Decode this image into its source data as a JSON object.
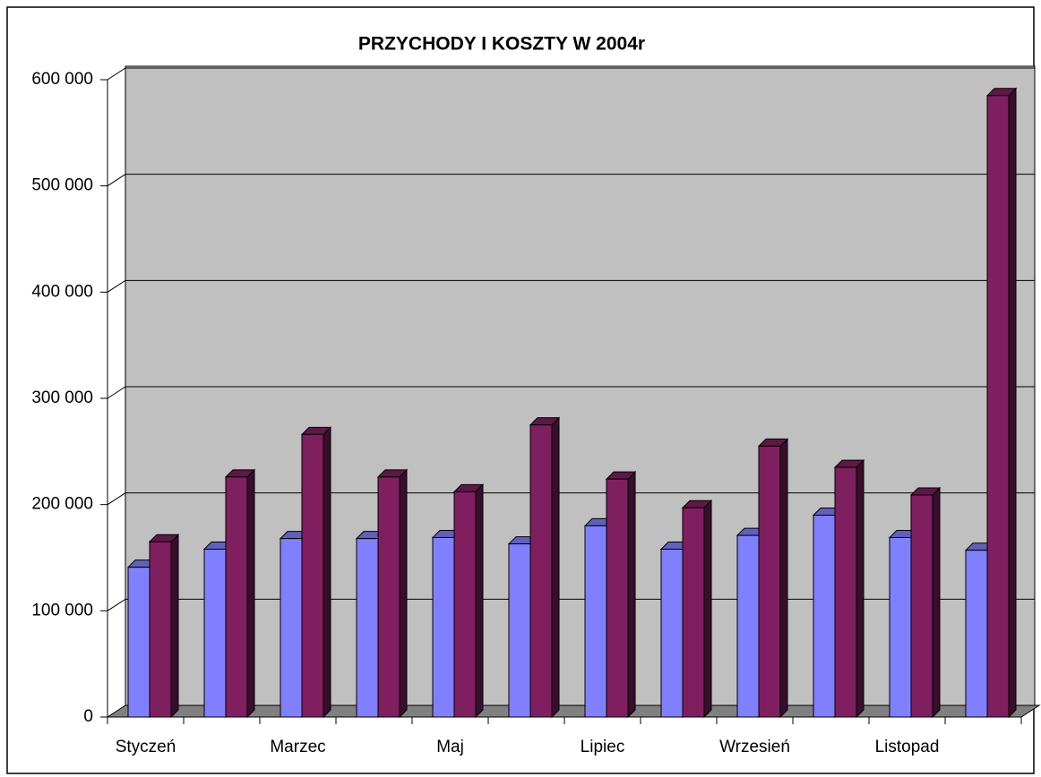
{
  "chart_data": {
    "type": "bar3d",
    "title": "PRZYCHODY I KOSZTY W 2004r",
    "categories": [
      "Styczeń",
      null,
      "Marzec",
      null,
      "Maj",
      null,
      "Lipiec",
      null,
      "Wrzesień",
      null,
      "Listopad",
      null
    ],
    "series": [
      {
        "color": "#8080ff",
        "values": [
          141000,
          158000,
          168000,
          168000,
          169000,
          163000,
          180000,
          158000,
          171000,
          190000,
          169000,
          157000
        ]
      },
      {
        "color": "#7f1f5f",
        "values": [
          165000,
          226000,
          266000,
          226000,
          212000,
          275000,
          224000,
          197000,
          255000,
          235000,
          209000,
          585000
        ]
      }
    ],
    "ylim": [
      0,
      600000
    ],
    "yticks": [
      0,
      {
        "value": 100000,
        "label": "100 000"
      },
      {
        "value": 200000,
        "label": "200 000"
      },
      {
        "value": 300000,
        "label": "300 000"
      },
      {
        "value": 400000,
        "label": "400 000"
      },
      {
        "value": 500000,
        "label": "500 000"
      },
      {
        "value": 600000,
        "label": "600 000"
      }
    ],
    "grid": true
  }
}
